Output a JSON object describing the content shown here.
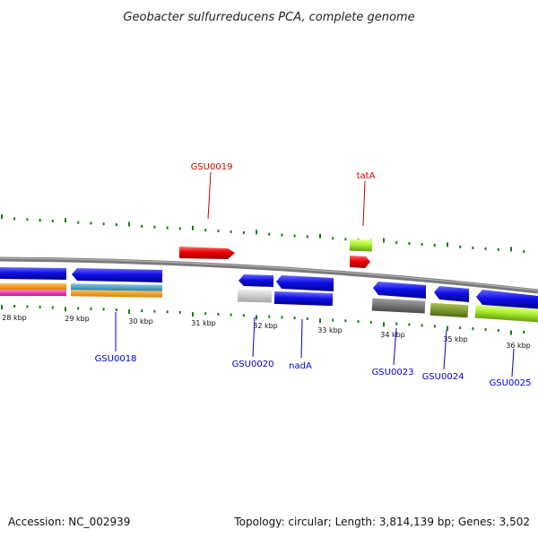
{
  "title": "Geobacter sulfurreducens PCA, complete genome",
  "footer": {
    "accession": "Accession: NC_002939",
    "summary": "Topology: circular; Length: 3,814,139 bp; Genes: 3,502"
  },
  "scale": {
    "ticks": [
      "28 kbp",
      "29 kbp",
      "30 kbp",
      "31 kbp",
      "32 kbp",
      "33 kbp",
      "34 kbp",
      "35 kbp",
      "36 kbp"
    ]
  },
  "gene_labels": {
    "gsu0019": "GSU0019",
    "tata": "tatA",
    "gsu0018": "GSU0018",
    "gsu0020": "GSU0020",
    "nada": "nadA",
    "gsu0023": "GSU0023",
    "gsu0024": "GSU0024",
    "gsu0025": "GSU0025"
  },
  "colors": {
    "forward_label": "#cc0000",
    "reverse_label": "#0000cc",
    "tick": "#1a7a1a",
    "backbone": "#888888"
  }
}
